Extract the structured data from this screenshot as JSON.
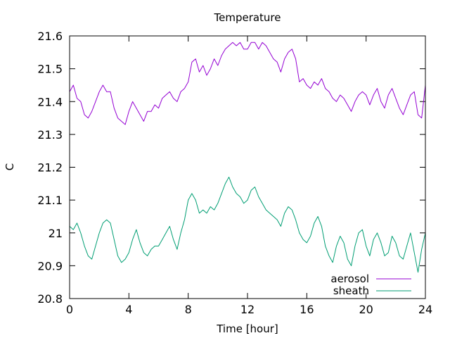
{
  "chart_data": {
    "type": "line",
    "title": "Temperature",
    "xlabel": "Time [hour]",
    "ylabel": "C",
    "xlim": [
      0,
      24
    ],
    "ylim": [
      20.8,
      21.6
    ],
    "x_ticks": [
      0,
      4,
      8,
      12,
      16,
      20,
      24
    ],
    "y_ticks": [
      20.8,
      20.9,
      21,
      21.1,
      21.2,
      21.3,
      21.4,
      21.5,
      21.6
    ],
    "y_tick_labels": [
      "20.8",
      "20.9",
      "21",
      "21.1",
      "21.2",
      "21.3",
      "21.4",
      "21.5",
      "21.6"
    ],
    "grid": false,
    "legend_position": "bottom-right",
    "series": [
      {
        "name": "aerosol",
        "color": "#9400d3",
        "x": [
          0,
          0.25,
          0.5,
          0.75,
          1,
          1.25,
          1.5,
          1.75,
          2,
          2.25,
          2.5,
          2.75,
          3,
          3.25,
          3.5,
          3.75,
          4,
          4.25,
          4.5,
          4.75,
          5,
          5.25,
          5.5,
          5.75,
          6,
          6.25,
          6.5,
          6.75,
          7,
          7.25,
          7.5,
          7.75,
          8,
          8.25,
          8.5,
          8.75,
          9,
          9.25,
          9.5,
          9.75,
          10,
          10.25,
          10.5,
          10.75,
          11,
          11.25,
          11.5,
          11.75,
          12,
          12.25,
          12.5,
          12.75,
          13,
          13.25,
          13.5,
          13.75,
          14,
          14.25,
          14.5,
          14.75,
          15,
          15.25,
          15.5,
          15.75,
          16,
          16.25,
          16.5,
          16.75,
          17,
          17.25,
          17.5,
          17.75,
          18,
          18.25,
          18.5,
          18.75,
          19,
          19.25,
          19.5,
          19.75,
          20,
          20.25,
          20.5,
          20.75,
          21,
          21.25,
          21.5,
          21.75,
          22,
          22.25,
          22.5,
          22.75,
          23,
          23.25,
          23.5,
          23.75,
          24
        ],
        "y": [
          21.43,
          21.45,
          21.41,
          21.4,
          21.36,
          21.35,
          21.37,
          21.4,
          21.43,
          21.45,
          21.43,
          21.43,
          21.38,
          21.35,
          21.34,
          21.33,
          21.37,
          21.4,
          21.38,
          21.36,
          21.34,
          21.37,
          21.37,
          21.39,
          21.38,
          21.41,
          21.42,
          21.43,
          21.41,
          21.4,
          21.43,
          21.44,
          21.46,
          21.52,
          21.53,
          21.49,
          21.51,
          21.48,
          21.5,
          21.53,
          21.51,
          21.54,
          21.56,
          21.57,
          21.58,
          21.57,
          21.58,
          21.56,
          21.56,
          21.58,
          21.58,
          21.56,
          21.58,
          21.57,
          21.55,
          21.53,
          21.52,
          21.49,
          21.53,
          21.55,
          21.56,
          21.53,
          21.46,
          21.47,
          21.45,
          21.44,
          21.46,
          21.45,
          21.47,
          21.44,
          21.43,
          21.41,
          21.4,
          21.42,
          21.41,
          21.39,
          21.37,
          21.4,
          21.42,
          21.43,
          21.42,
          21.39,
          21.42,
          21.44,
          21.4,
          21.38,
          21.42,
          21.44,
          21.41,
          21.38,
          21.36,
          21.39,
          21.42,
          21.43,
          21.36,
          21.35,
          21.45
        ]
      },
      {
        "name": "sheath",
        "color": "#009e73",
        "x": [
          0,
          0.25,
          0.5,
          0.75,
          1,
          1.25,
          1.5,
          1.75,
          2,
          2.25,
          2.5,
          2.75,
          3,
          3.25,
          3.5,
          3.75,
          4,
          4.25,
          4.5,
          4.75,
          5,
          5.25,
          5.5,
          5.75,
          6,
          6.25,
          6.5,
          6.75,
          7,
          7.25,
          7.5,
          7.75,
          8,
          8.25,
          8.5,
          8.75,
          9,
          9.25,
          9.5,
          9.75,
          10,
          10.25,
          10.5,
          10.75,
          11,
          11.25,
          11.5,
          11.75,
          12,
          12.25,
          12.5,
          12.75,
          13,
          13.25,
          13.5,
          13.75,
          14,
          14.25,
          14.5,
          14.75,
          15,
          15.25,
          15.5,
          15.75,
          16,
          16.25,
          16.5,
          16.75,
          17,
          17.25,
          17.5,
          17.75,
          18,
          18.25,
          18.5,
          18.75,
          19,
          19.25,
          19.5,
          19.75,
          20,
          20.25,
          20.5,
          20.75,
          21,
          21.25,
          21.5,
          21.75,
          22,
          22.25,
          22.5,
          22.75,
          23,
          23.25,
          23.5,
          23.75,
          24
        ],
        "y": [
          21.02,
          21.01,
          21.03,
          21.0,
          20.96,
          20.93,
          20.92,
          20.96,
          21.0,
          21.03,
          21.04,
          21.03,
          20.98,
          20.93,
          20.91,
          20.92,
          20.94,
          20.98,
          21.01,
          20.97,
          20.94,
          20.93,
          20.95,
          20.96,
          20.96,
          20.98,
          21.0,
          21.02,
          20.98,
          20.95,
          21.0,
          21.04,
          21.1,
          21.12,
          21.1,
          21.06,
          21.07,
          21.06,
          21.08,
          21.07,
          21.09,
          21.12,
          21.15,
          21.17,
          21.14,
          21.12,
          21.11,
          21.09,
          21.1,
          21.13,
          21.14,
          21.11,
          21.09,
          21.07,
          21.06,
          21.05,
          21.04,
          21.02,
          21.06,
          21.08,
          21.07,
          21.04,
          21.0,
          20.98,
          20.97,
          20.99,
          21.03,
          21.05,
          21.02,
          20.96,
          20.93,
          20.91,
          20.96,
          20.99,
          20.97,
          20.92,
          20.9,
          20.96,
          21.0,
          21.01,
          20.96,
          20.93,
          20.98,
          21.0,
          20.97,
          20.93,
          20.94,
          20.99,
          20.97,
          20.93,
          20.92,
          20.96,
          21.0,
          20.94,
          20.88,
          20.95,
          21.0
        ]
      }
    ]
  }
}
